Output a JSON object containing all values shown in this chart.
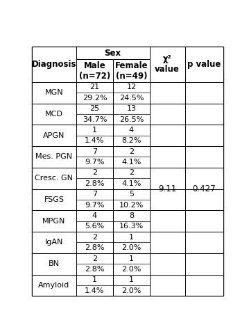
{
  "col_headers_row1": [
    "Diagnosis",
    "Sex",
    "",
    "χ²\nvalue",
    "p value"
  ],
  "col_headers_row2": [
    "",
    "Male\n(n=72)",
    "Female\n(n=49)",
    "",
    ""
  ],
  "rows": [
    {
      "diagnosis": "MGN",
      "male": "21",
      "female": "12",
      "male_pct": "29.2%",
      "female_pct": "24.5%"
    },
    {
      "diagnosis": "MCD",
      "male": "25",
      "female": "13",
      "male_pct": "34.7%",
      "female_pct": "26.5%"
    },
    {
      "diagnosis": "APGN",
      "male": "1",
      "female": "4",
      "male_pct": "1.4%",
      "female_pct": "8.2%"
    },
    {
      "diagnosis": "Mes. PGN",
      "male": "7",
      "female": "2",
      "male_pct": "9.7%",
      "female_pct": "4.1%"
    },
    {
      "diagnosis": "Cresc. GN",
      "male": "2",
      "female": "2",
      "male_pct": "2.8%",
      "female_pct": "4.1%"
    },
    {
      "diagnosis": "FSGS",
      "male": "7",
      "female": "5",
      "male_pct": "9.7%",
      "female_pct": "10.2%"
    },
    {
      "diagnosis": "MPGN",
      "male": "4",
      "female": "8",
      "male_pct": "5.6%",
      "female_pct": "16.3%"
    },
    {
      "diagnosis": "IgAN",
      "male": "2",
      "female": "1",
      "male_pct": "2.8%",
      "female_pct": "2.0%"
    },
    {
      "diagnosis": "BN",
      "male": "2",
      "female": "1",
      "male_pct": "2.8%",
      "female_pct": "2.0%"
    },
    {
      "diagnosis": "Amyloid",
      "male": "1",
      "female": "1",
      "male_pct": "1.4%",
      "female_pct": "2.0%"
    }
  ],
  "chi2_value": "9.11",
  "p_value": "0.427",
  "background_color": "#ffffff",
  "font_size": 8.0,
  "header_font_size": 8.5,
  "lw": 0.7
}
